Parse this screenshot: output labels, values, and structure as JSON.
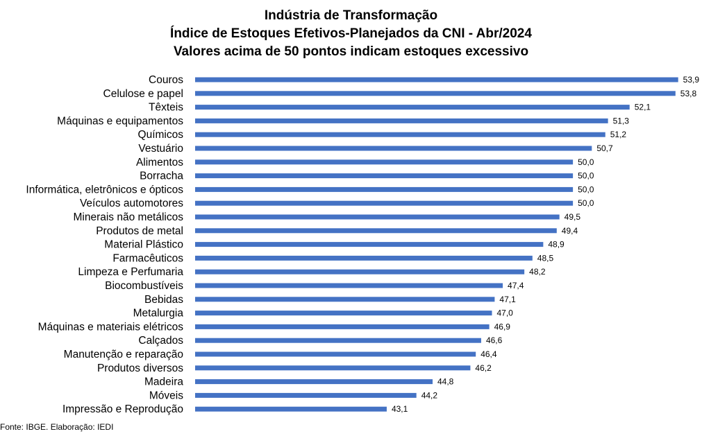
{
  "chart_data": {
    "type": "bar",
    "orientation": "horizontal",
    "title": [
      "Indústria de Transformação",
      "Índice de Estoques Efetivos-Planejados da CNI - Abr/2024",
      "Valores acima de 50 pontos indicam estoques excessivo"
    ],
    "categories": [
      "Couros",
      "Celulose e papel",
      "Têxteis",
      "Máquinas e equipamentos",
      "Químicos",
      "Vestuário",
      "Alimentos",
      "Borracha",
      "Informática, eletrônicos e ópticos",
      "Veículos automotores",
      "Minerais não metálicos",
      "Produtos de metal",
      "Material Plástico",
      "Farmacêuticos",
      "Limpeza e Perfumaria",
      "Biocombustíveis",
      "Bebidas",
      "Metalurgia",
      "Máquinas e materiais elétricos",
      "Calçados",
      "Manutenção e reparação",
      "Produtos diversos",
      "Madeira",
      "Móveis",
      "Impressão e Reprodução"
    ],
    "values": [
      53.9,
      53.8,
      52.1,
      51.3,
      51.2,
      50.7,
      50.0,
      50.0,
      50.0,
      50.0,
      49.5,
      49.4,
      48.9,
      48.5,
      48.2,
      47.4,
      47.1,
      47.0,
      46.9,
      46.6,
      46.4,
      46.2,
      44.8,
      44.2,
      43.1
    ],
    "value_labels": [
      "53,9",
      "53,8",
      "52,1",
      "51,3",
      "51,2",
      "50,7",
      "50,0",
      "50,0",
      "50,0",
      "50,0",
      "49,5",
      "49,4",
      "48,9",
      "48,5",
      "48,2",
      "47,4",
      "47,1",
      "47,0",
      "46,9",
      "46,6",
      "46,4",
      "46,2",
      "44,8",
      "44,2",
      "43,1"
    ],
    "xlim": [
      36,
      54.5
    ],
    "bar_color": "#4472C4",
    "grid": false
  },
  "source": "Fonte: IBGE. Elaboração: IEDI"
}
